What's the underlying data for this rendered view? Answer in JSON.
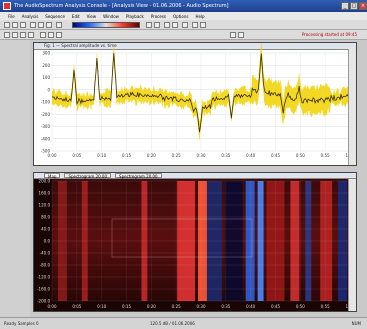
{
  "window": {
    "title": "The AudioSpectrum Analysis Console - [Analysis View - 01.06.2006 - Audio Spectrum]"
  },
  "menu": {
    "items": [
      "File",
      "Analysis",
      "Sequence",
      "Edit",
      "View",
      "Window",
      "Playback",
      "Process",
      "Options",
      "Help"
    ]
  },
  "toolbar": {
    "status_note": "Processing started at 09:45"
  },
  "top_panel": {
    "title": "Fig. 1 — Spectral amplitude vs. time",
    "y_ticks": [
      "300",
      "200",
      "100",
      "0",
      "-100",
      "-200",
      "-300",
      "-400",
      "-500"
    ],
    "x_ticks": [
      "0:00",
      "0:05",
      "0:10",
      "0:15",
      "0:20",
      "0:25",
      "0:30",
      "0:35",
      "0:40",
      "0:45",
      "0:50",
      "0:55",
      "1:00"
    ]
  },
  "bottom_panel": {
    "tabs": [
      "Map",
      "Spectrogram 20.00",
      "Spectrogram 20.00"
    ],
    "y_ticks": [
      "200.0",
      "160.0",
      "120.0",
      "80.0",
      "40.0",
      "0.0",
      "-40.0",
      "-80.0",
      "-120.0",
      "-160.0",
      "-200.0"
    ],
    "x_ticks": [
      "0:00",
      "0:05",
      "0:10",
      "0:15",
      "0:20",
      "0:25",
      "0:30",
      "0:35",
      "0:40",
      "0:45",
      "0:50",
      "0:55",
      "1:00"
    ]
  },
  "status": {
    "left": "Ready  Samples 0  ",
    "center": "120.5 dB / 01.06.2006",
    "right": "NUM"
  },
  "colors": {
    "trace": "#f2d100",
    "trace_dark": "#3a2f00",
    "background_plot": "#ffffff"
  }
}
